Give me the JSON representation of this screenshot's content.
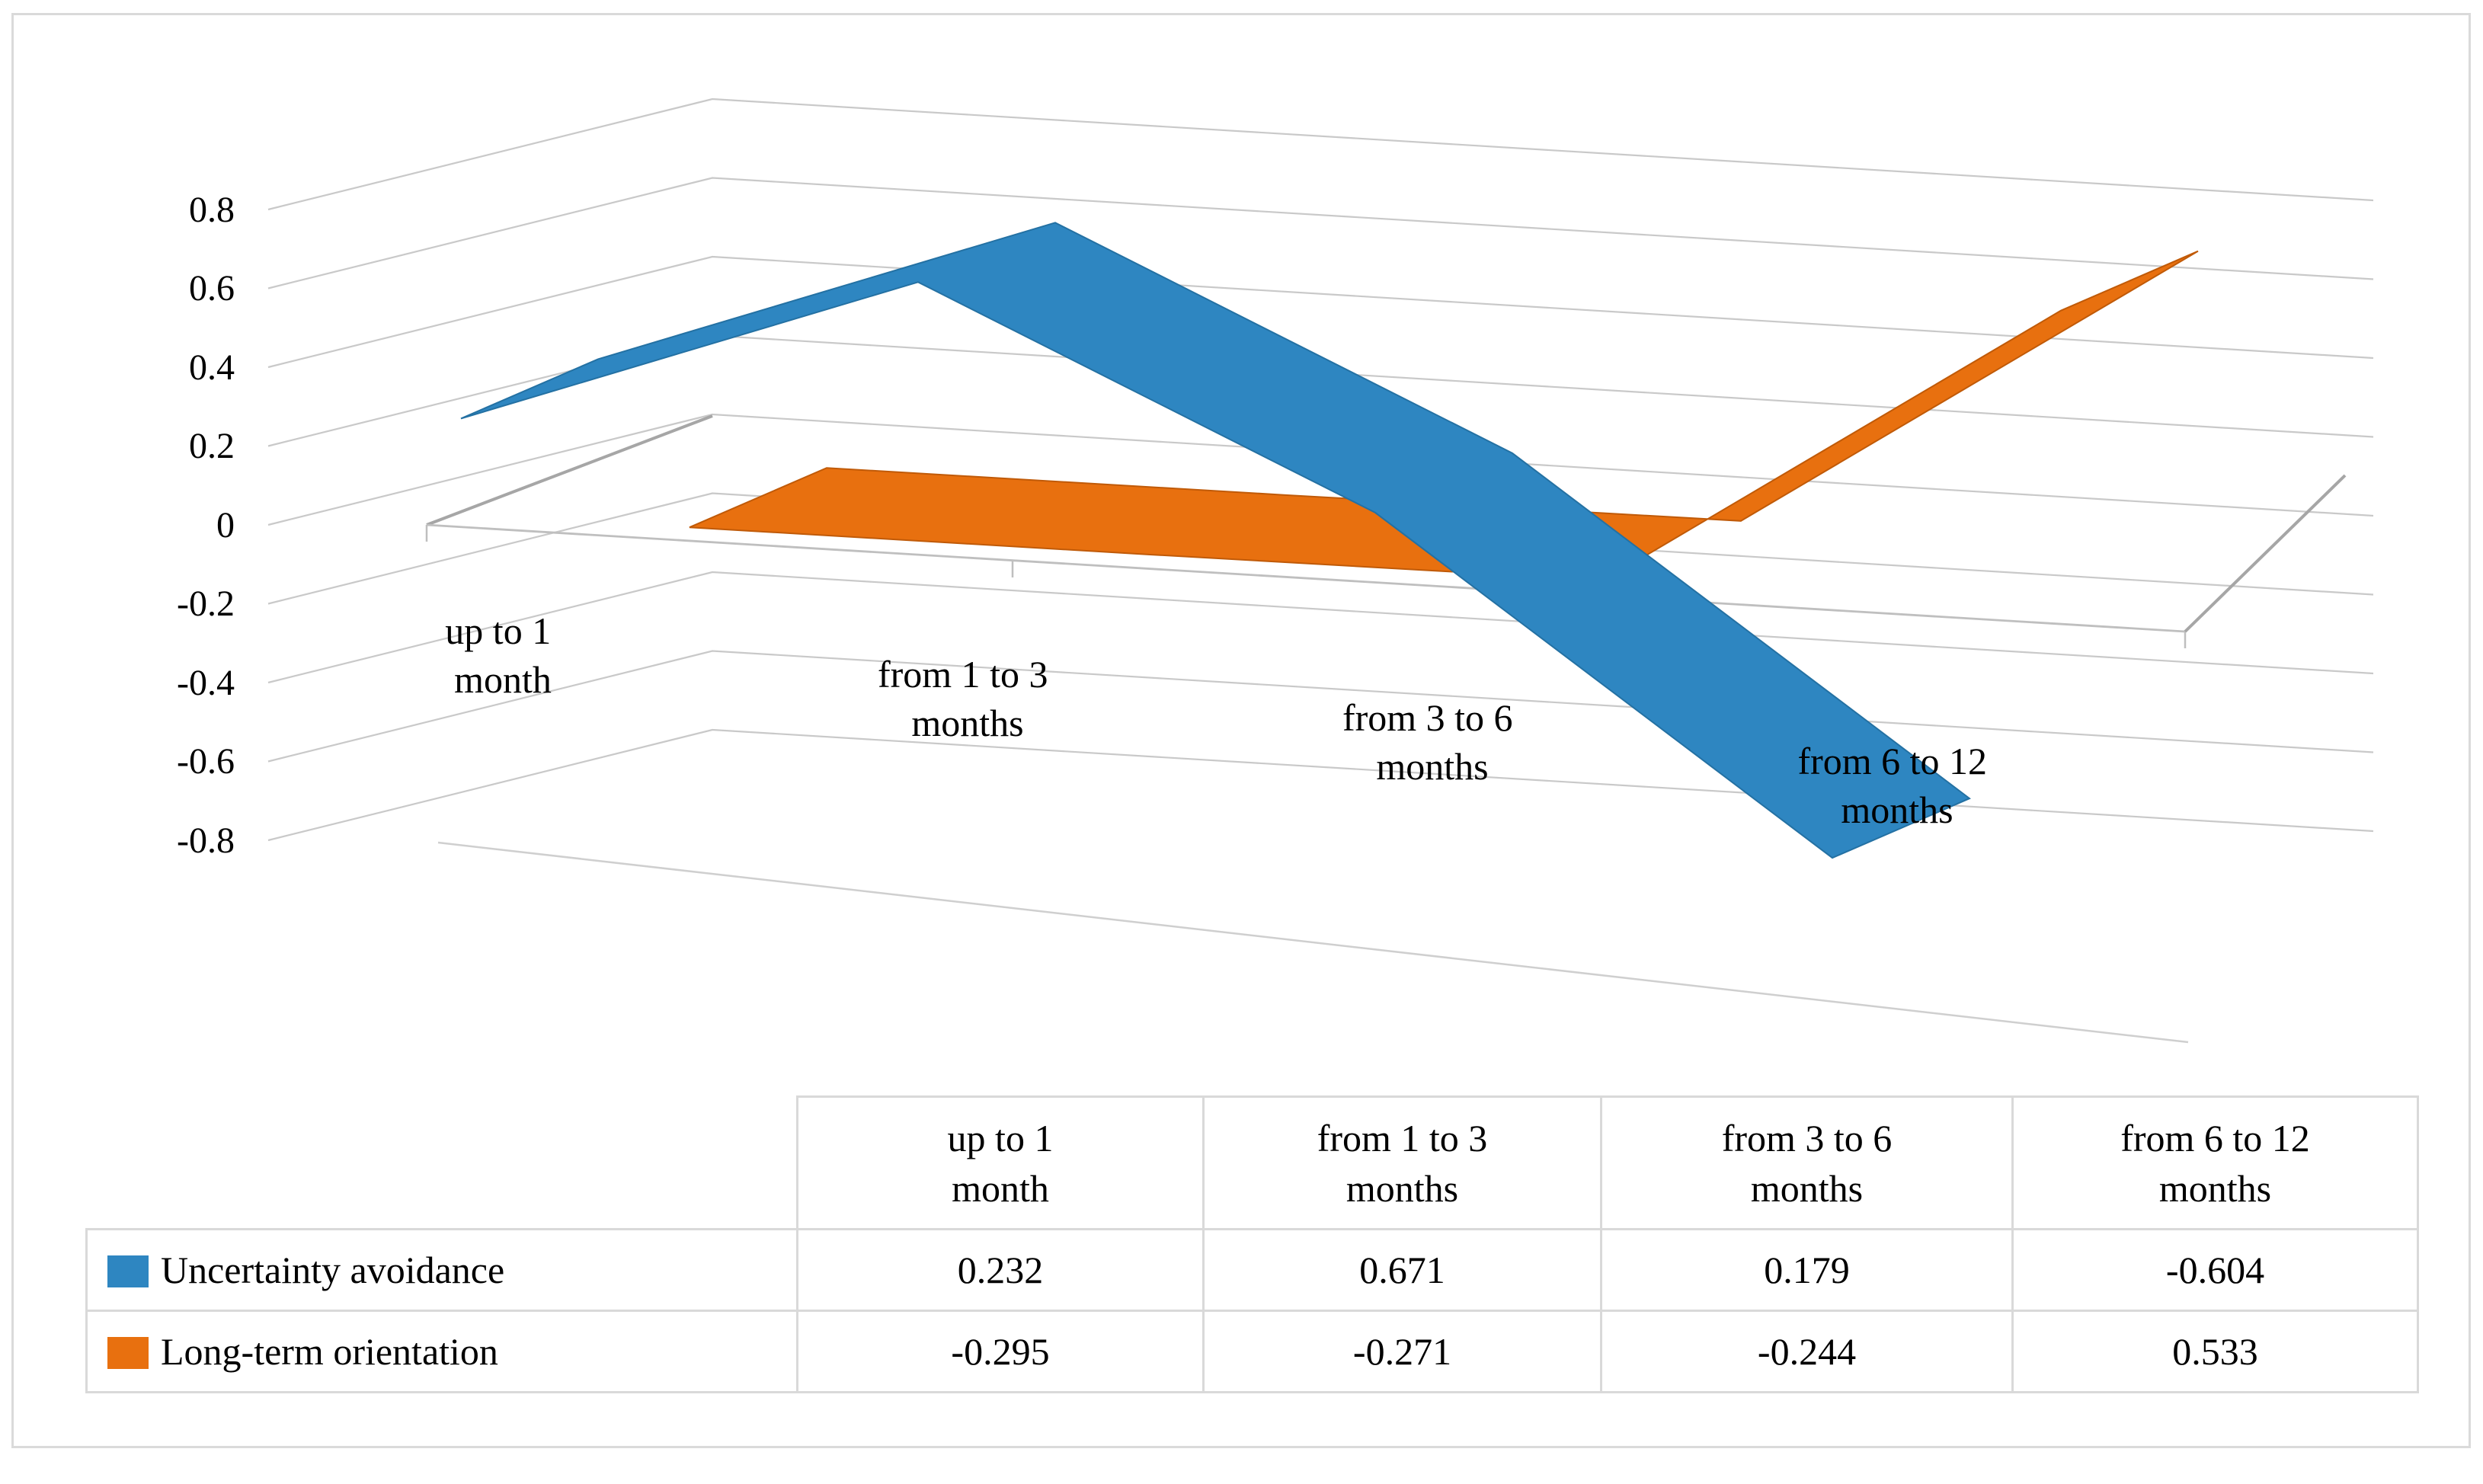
{
  "figure": {
    "background": "#FFFFFF",
    "border_color": "#DADADA"
  },
  "chart_data": {
    "type": "line",
    "style": "3d-ribbon",
    "title": "",
    "xlabel": "",
    "ylabel": "",
    "categories": [
      "up to 1 month",
      "from 1 to 3 months",
      "from 3 to 6 months",
      "from 6 to 12 months"
    ],
    "categories_lines": [
      [
        "up to 1",
        "month"
      ],
      [
        "from 1 to 3",
        "months"
      ],
      [
        "from 3 to 6",
        "months"
      ],
      [
        "from 6 to 12",
        "months"
      ]
    ],
    "y_ticks": [
      "0.8",
      "0.6",
      "0.4",
      "0.2",
      "0",
      "-0.2",
      "-0.4",
      "-0.6",
      "-0.8"
    ],
    "ylim": [
      -0.8,
      0.8
    ],
    "grid": true,
    "legend_position": "table-rows-left",
    "series": [
      {
        "name": "Uncertainty avoidance",
        "color": "#2E86C1",
        "values": [
          0.232,
          0.671,
          0.179,
          -0.604
        ]
      },
      {
        "name": "Long-term orientation",
        "color": "#E8700F",
        "values": [
          -0.295,
          -0.271,
          -0.244,
          0.533
        ]
      }
    ]
  }
}
